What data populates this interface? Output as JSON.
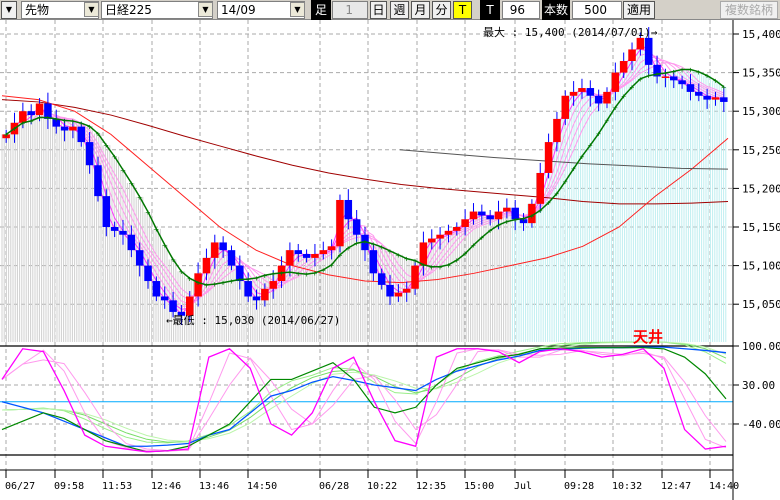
{
  "toolbar": {
    "type_select": "先物",
    "index_select": "日経225",
    "month_select": "14/09",
    "bar_label": "足",
    "bar_count": "1",
    "day_btn": "日",
    "week_btn": "週",
    "month_btn": "月",
    "minute_btn": "分",
    "t_btn": "T",
    "t_label": "T",
    "t_value": "96",
    "count_label": "本数",
    "count_value": "500",
    "apply_btn": "適用",
    "multi_btn": "複数銘柄"
  },
  "colors": {
    "up": "#ff0000",
    "down": "#0000ff",
    "ma_green": "#007700",
    "ma_red": "#ff2020",
    "ma_darkred": "#a00000",
    "osc_blue": "#0055ff",
    "hline": "#00aaff"
  },
  "chart_data": [
    {
      "type": "candlestick",
      "y_ticks": [
        "15,400",
        "15,350",
        "15,300",
        "15,250",
        "15,200",
        "15,150",
        "15,100",
        "15,050"
      ],
      "y_tick_values": [
        15400,
        15350,
        15300,
        15250,
        15200,
        15150,
        15100,
        15050
      ],
      "x_ticks": [
        "06/27",
        "09:58",
        "11:53",
        "12:46",
        "13:46",
        "14:50",
        "06/28",
        "10:22",
        "12:35",
        "15:00",
        "Jul",
        "09:28",
        "10:32",
        "12:47",
        "14:40"
      ],
      "closes": [
        15270,
        15285,
        15300,
        15295,
        15310,
        15290,
        15280,
        15275,
        15280,
        15260,
        15230,
        15190,
        15150,
        15145,
        15140,
        15120,
        15100,
        15080,
        15060,
        15055,
        15040,
        15035,
        15060,
        15090,
        15110,
        15130,
        15120,
        15100,
        15080,
        15060,
        15055,
        15070,
        15080,
        15100,
        15120,
        15115,
        15110,
        15115,
        15120,
        15125,
        15185,
        15160,
        15140,
        15120,
        15090,
        15075,
        15060,
        15065,
        15070,
        15100,
        15130,
        15135,
        15140,
        15145,
        15150,
        15160,
        15170,
        15165,
        15160,
        15170,
        15175,
        15160,
        15155,
        15180,
        15220,
        15260,
        15290,
        15320,
        15325,
        15330,
        15320,
        15310,
        15325,
        15350,
        15365,
        15380,
        15395,
        15360,
        15345,
        15345,
        15340,
        15335,
        15325,
        15320,
        15315,
        15318,
        15312
      ],
      "ma_red": [
        15320,
        15315,
        15300,
        15270,
        15230,
        15190,
        15150,
        15120,
        15100,
        15088,
        15080,
        15078,
        15082,
        15090,
        15100,
        15110,
        15125,
        15150,
        15190,
        15225,
        15265
      ],
      "ma_darkred": [
        15315,
        15312,
        15305,
        15295,
        15282,
        15268,
        15255,
        15242,
        15230,
        15220,
        15212,
        15205,
        15200,
        15196,
        15192,
        15188,
        15183,
        15180,
        15180,
        15181,
        15183
      ],
      "ma_gray": [
        15250,
        15245,
        15240,
        15236,
        15232,
        15229,
        15226,
        15225
      ],
      "annotations": {
        "max": "最大 : 15,400 (2014/07/01)→",
        "min": "←最低 : 15,030 (2014/06/27)"
      }
    },
    {
      "type": "line",
      "y_ticks": [
        "100.00",
        "30.00",
        "-40.00"
      ],
      "y_tick_values": [
        100,
        30,
        -40
      ],
      "label": "天井",
      "hline": 0,
      "series": [
        {
          "color": "#ff00ff",
          "values": [
            40,
            95,
            90,
            20,
            -60,
            -80,
            -85,
            -90,
            -88,
            -85,
            80,
            95,
            60,
            -40,
            -60,
            -20,
            60,
            80,
            0,
            -70,
            -80,
            80,
            95,
            95,
            90,
            70,
            90,
            95,
            90,
            80,
            85,
            95,
            60,
            -50,
            -85,
            -80
          ]
        },
        {
          "color": "#008800",
          "values": [
            -50,
            -35,
            -20,
            -30,
            -50,
            -70,
            -80,
            -90,
            -88,
            -80,
            -60,
            -40,
            0,
            40,
            40,
            55,
            70,
            40,
            -10,
            -20,
            -10,
            30,
            60,
            70,
            80,
            85,
            95,
            96,
            97,
            97,
            97,
            97,
            95,
            80,
            50,
            5
          ]
        },
        {
          "color": "#0055ff",
          "values": [
            0,
            -10,
            -20,
            -35,
            -50,
            -65,
            -80,
            -80,
            -78,
            -75,
            -60,
            -50,
            -20,
            10,
            20,
            35,
            45,
            38,
            30,
            25,
            20,
            40,
            55,
            65,
            75,
            82,
            92,
            94,
            96,
            97,
            97,
            98,
            98,
            95,
            92,
            88
          ]
        }
      ]
    }
  ]
}
